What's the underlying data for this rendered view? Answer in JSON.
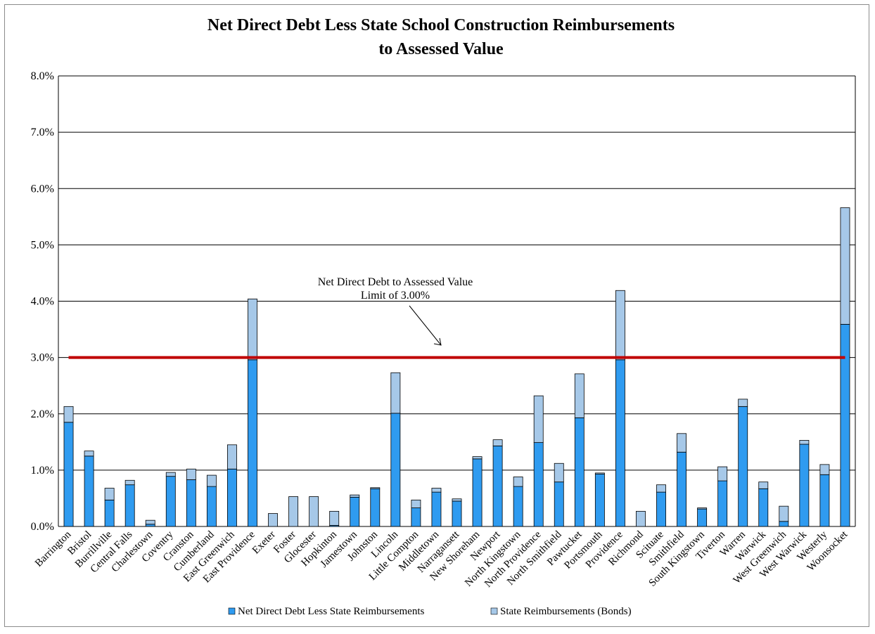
{
  "chart_data": {
    "type": "bar",
    "stacked": true,
    "title_line1": "Net Direct Debt Less State School Construction Reimbursements",
    "title_line2": "to Assessed Value",
    "xlabel": "",
    "ylabel": "",
    "ylim": [
      0,
      8
    ],
    "yticks": [
      0,
      1,
      2,
      3,
      4,
      5,
      6,
      7,
      8
    ],
    "ytick_labels": [
      "0.0%",
      "1.0%",
      "2.0%",
      "3.0%",
      "4.0%",
      "5.0%",
      "6.0%",
      "7.0%",
      "8.0%"
    ],
    "grid": true,
    "legend_position": "bottom",
    "categories": [
      "Barrington",
      "Bristol",
      "Burrillville",
      "Central Falls",
      "Charlestown",
      "Coventry",
      "Cranston",
      "Cumberland",
      "East Greenwich",
      "East Providence",
      "Exeter",
      "Foster",
      "Glocester",
      "Hopkinton",
      "Jamestown",
      "Johnston",
      "Lincoln",
      "Little Compton",
      "Middletown",
      "Narragansett",
      "New Shoreham",
      "Newport",
      "North Kingstown",
      "North Providence",
      "North Smithfield",
      "Pawtucket",
      "Portsmouth",
      "Providence",
      "Richmond",
      "Scituate",
      "Smithfield",
      "South Kingstown",
      "Tiverton",
      "Warren",
      "Warwick",
      "West Greenwich",
      "West Warwick",
      "Westerly",
      "Woonsocket"
    ],
    "series": [
      {
        "name": "Net Direct Debt Less State Reimbursements",
        "color": "#2f9bf0",
        "values": [
          1.85,
          1.25,
          0.47,
          0.74,
          0.04,
          0.89,
          0.83,
          0.71,
          1.02,
          2.96,
          0.0,
          0.0,
          0.0,
          0.02,
          0.52,
          0.67,
          2.01,
          0.33,
          0.61,
          0.45,
          1.2,
          1.43,
          0.71,
          1.49,
          0.79,
          1.93,
          0.93,
          2.96,
          0.0,
          0.61,
          1.32,
          0.31,
          0.81,
          2.13,
          0.67,
          0.09,
          1.46,
          0.92,
          3.59
        ]
      },
      {
        "name": "State Reimbursements (Bonds)",
        "color": "#a6c8e8",
        "values": [
          0.28,
          0.09,
          0.21,
          0.08,
          0.07,
          0.07,
          0.19,
          0.2,
          0.43,
          1.08,
          0.23,
          0.53,
          0.53,
          0.25,
          0.04,
          0.02,
          0.72,
          0.14,
          0.07,
          0.04,
          0.04,
          0.11,
          0.17,
          0.83,
          0.33,
          0.78,
          0.02,
          1.23,
          0.27,
          0.13,
          0.33,
          0.02,
          0.25,
          0.13,
          0.12,
          0.27,
          0.07,
          0.18,
          2.07
        ]
      }
    ],
    "reference_line": {
      "value": 3.0,
      "color": "#c00000",
      "label_line1": "Net Direct Debt to Assessed Value",
      "label_line2": "Limit of 3.00%"
    }
  }
}
